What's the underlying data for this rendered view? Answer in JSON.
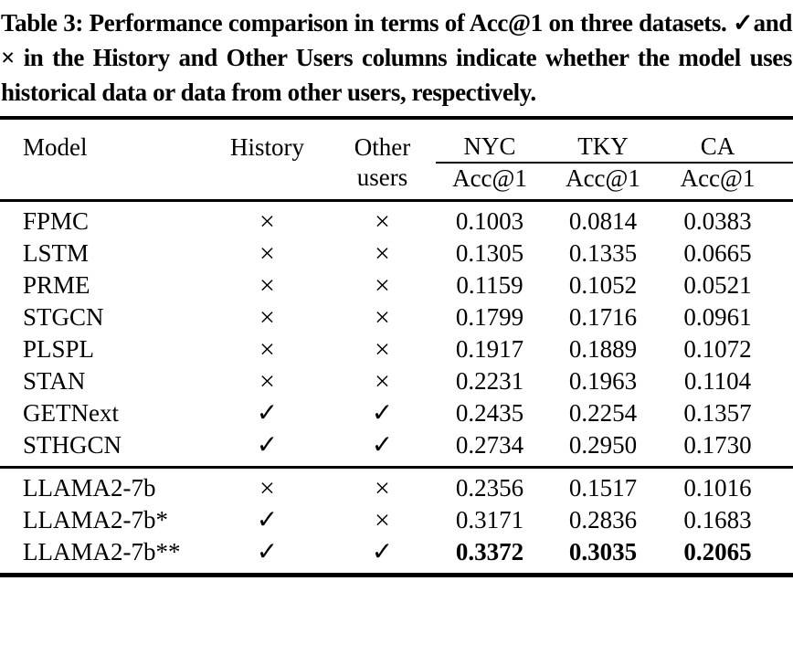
{
  "caption": "Table 3: Performance comparison in terms of Acc@1 on three datasets. ✓and × in the History and Other Users columns indicate whether the model uses historical data or data from other users, respectively.",
  "header": {
    "model": "Model",
    "history": "History",
    "other_line1": "Other",
    "other_line2": "users",
    "datasets": [
      "NYC",
      "TKY",
      "CA"
    ],
    "metric": "Acc@1"
  },
  "symbols": {
    "uses": "✓",
    "not_uses": "×"
  },
  "colors": {
    "text": "#000000",
    "background": "#ffffff",
    "rule": "#000000"
  },
  "rows": [
    {
      "model": "FPMC",
      "history": "×",
      "other_users": "×",
      "nyc": "0.1003",
      "tky": "0.0814",
      "ca": "0.0383"
    },
    {
      "model": "LSTM",
      "history": "×",
      "other_users": "×",
      "nyc": "0.1305",
      "tky": "0.1335",
      "ca": "0.0665"
    },
    {
      "model": "PRME",
      "history": "×",
      "other_users": "×",
      "nyc": "0.1159",
      "tky": "0.1052",
      "ca": "0.0521"
    },
    {
      "model": "STGCN",
      "history": "×",
      "other_users": "×",
      "nyc": "0.1799",
      "tky": "0.1716",
      "ca": "0.0961"
    },
    {
      "model": "PLSPL",
      "history": "×",
      "other_users": "×",
      "nyc": "0.1917",
      "tky": "0.1889",
      "ca": "0.1072"
    },
    {
      "model": "STAN",
      "history": "×",
      "other_users": "×",
      "nyc": "0.2231",
      "tky": "0.1963",
      "ca": "0.1104"
    },
    {
      "model": "GETNext",
      "history": "✓",
      "other_users": "✓",
      "nyc": "0.2435",
      "tky": "0.2254",
      "ca": "0.1357"
    },
    {
      "model": "STHGCN",
      "history": "✓",
      "other_users": "✓",
      "nyc": "0.2734",
      "tky": "0.2950",
      "ca": "0.1730"
    },
    {
      "model": "LLAMA2-7b",
      "history": "×",
      "other_users": "×",
      "nyc": "0.2356",
      "tky": "0.1517",
      "ca": "0.1016"
    },
    {
      "model": "LLAMA2-7b*",
      "history": "✓",
      "other_users": "×",
      "nyc": "0.3171",
      "tky": "0.2836",
      "ca": "0.1683"
    },
    {
      "model": "LLAMA2-7b**",
      "history": "✓",
      "other_users": "✓",
      "nyc": "0.3372",
      "tky": "0.3035",
      "ca": "0.2065"
    }
  ]
}
